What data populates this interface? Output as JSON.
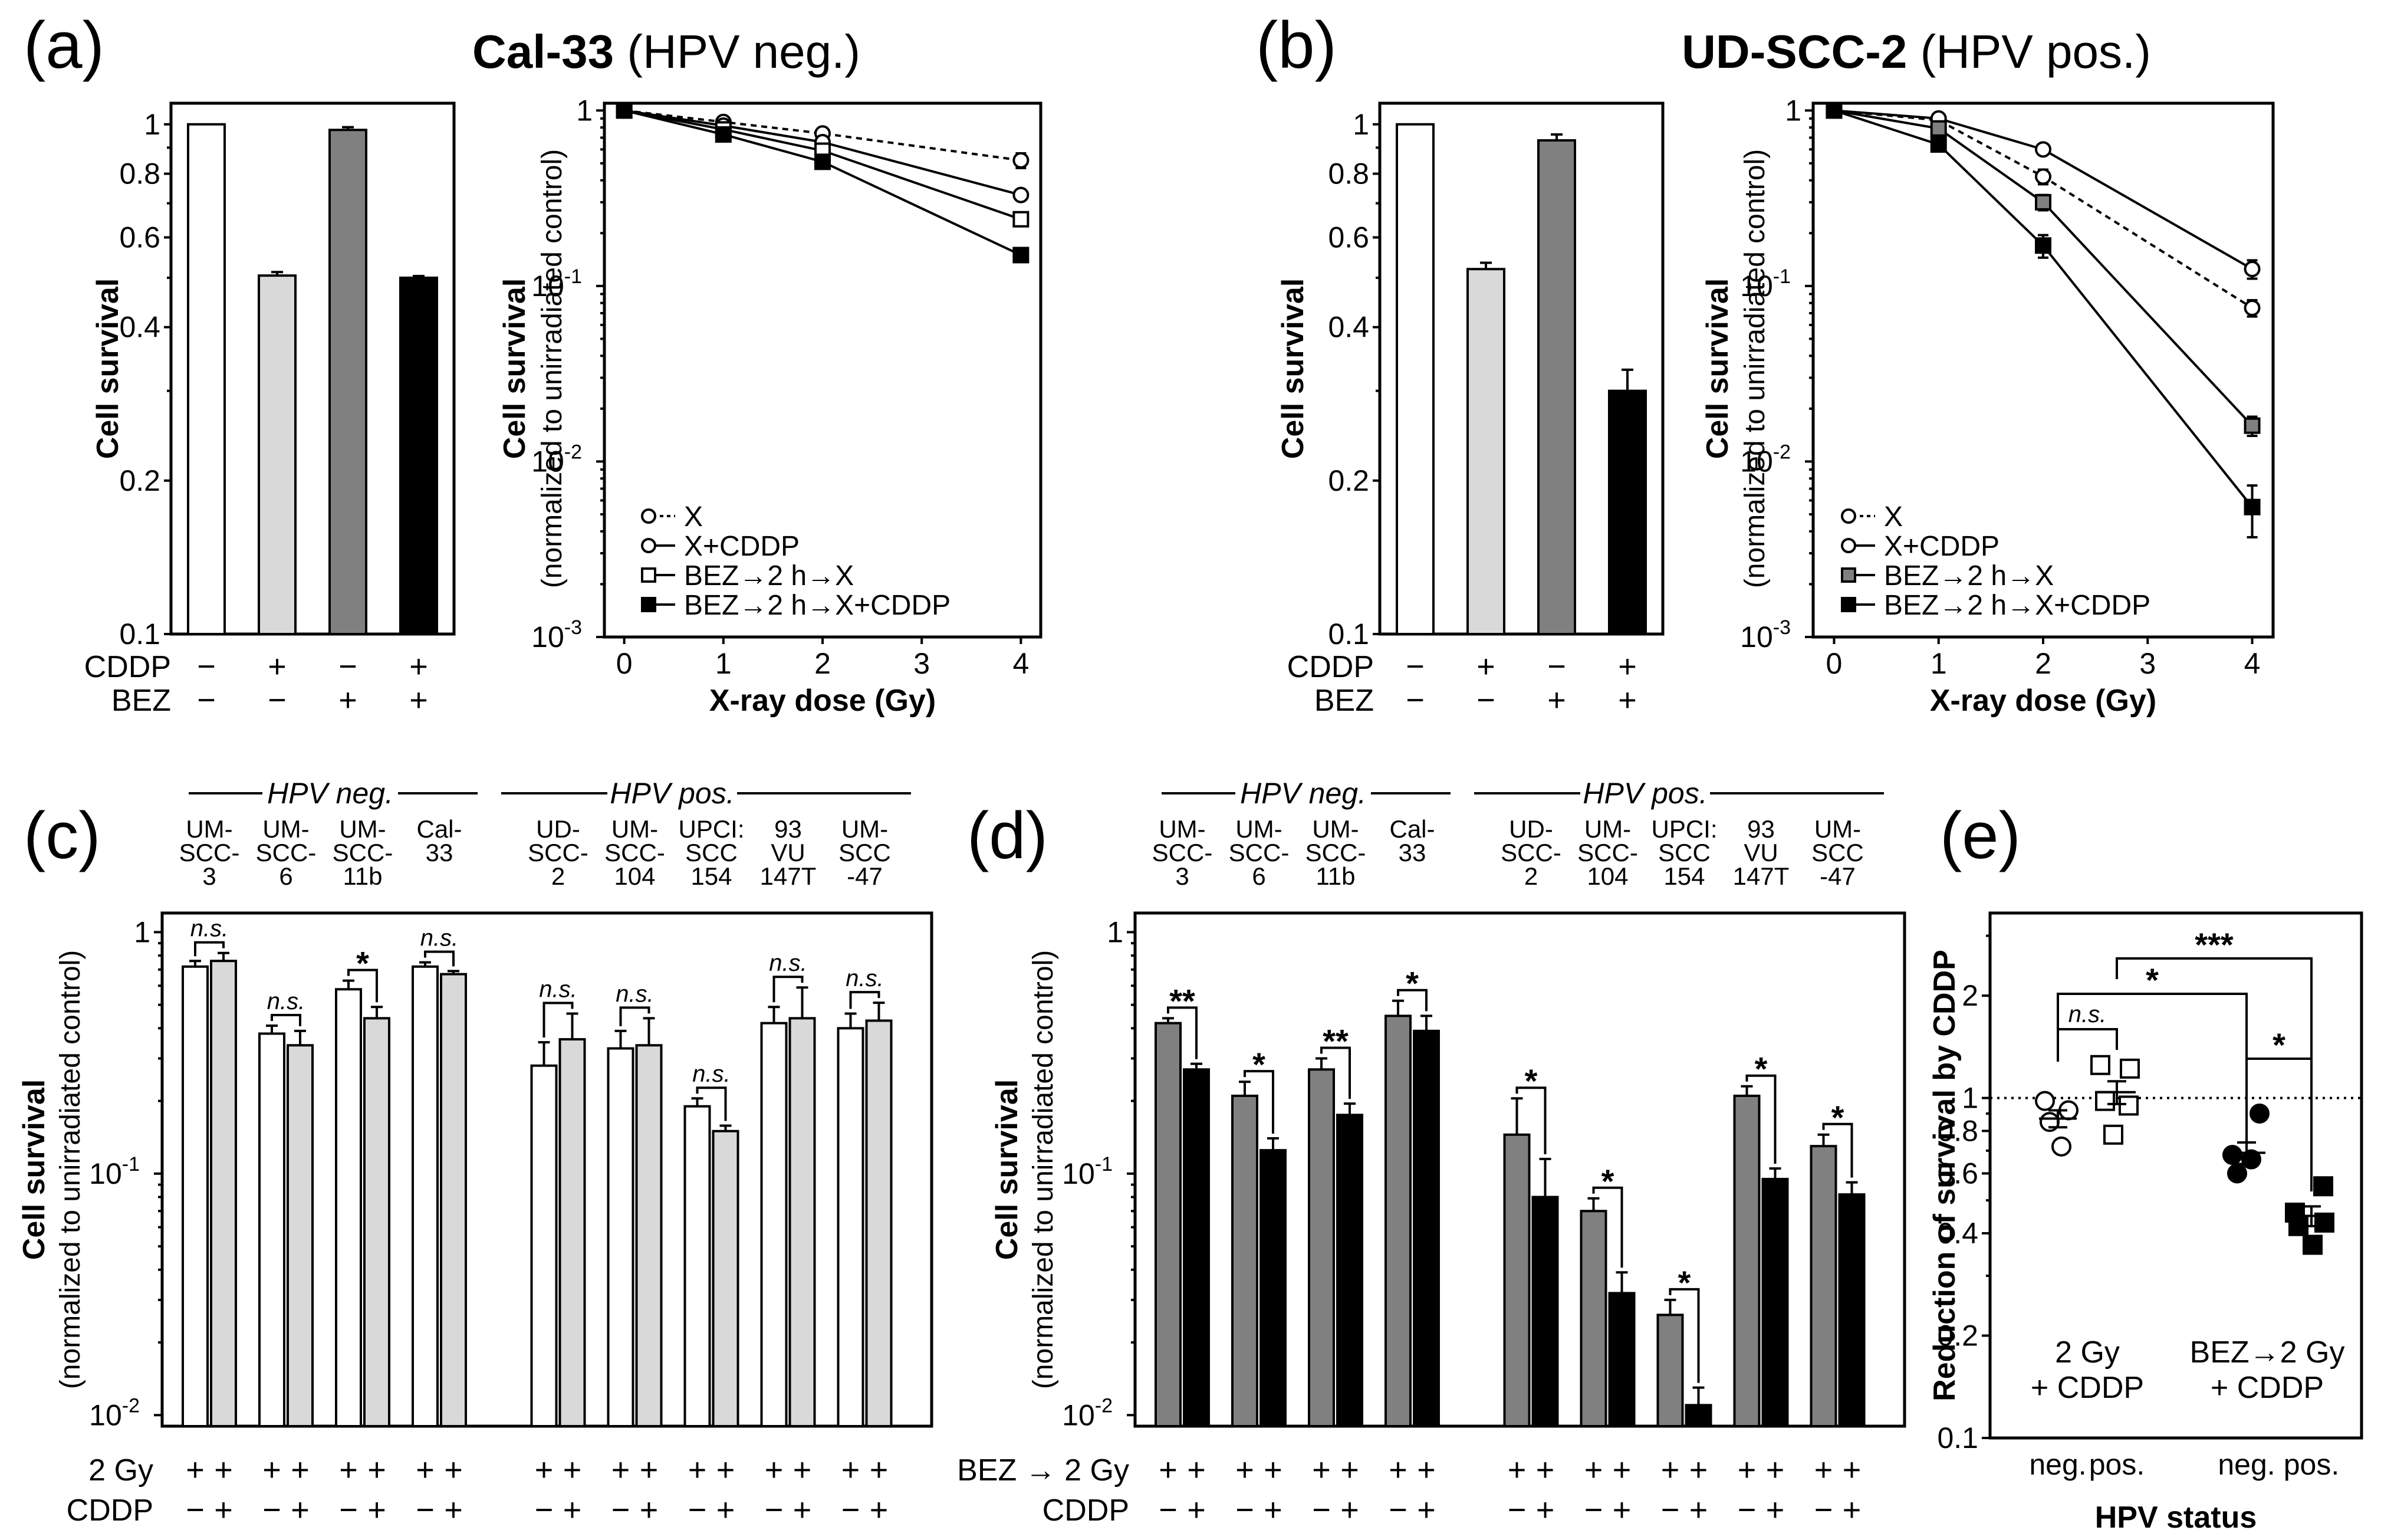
{
  "panels": {
    "a": {
      "label": "(a)",
      "title_bold": "Cal-33",
      "title_rest": " (HPV neg.)"
    },
    "b": {
      "label": "(b)",
      "title_bold": "UD-SCC-2",
      "title_rest": " (HPV pos.)"
    },
    "c": {
      "label": "(c)"
    },
    "d": {
      "label": "(d)"
    },
    "e": {
      "label": "(e)"
    }
  },
  "labels": {
    "cell_survival": "Cell survival",
    "normalized": "(normalized to unirradiated control)",
    "xray_dose": "X-ray dose (Gy)",
    "cddp": "CDDP",
    "bez": "BEZ",
    "two_gy": "2 Gy",
    "bez_2gy": "BEZ → 2 Gy",
    "hpv_neg": "HPV neg.",
    "hpv_pos": "HPV pos.",
    "reduction": "Reduction of survival by CDDP",
    "hpv_status": "HPV status",
    "plus": "+",
    "minus": "−",
    "ns": "n.s.",
    "e_group1_line1": "2 Gy",
    "e_group1_line2": "+ CDDP",
    "e_group2_line1": "BEZ→2 Gy",
    "e_group2_line2": "+ CDDP",
    "e_neg": "neg.",
    "e_pos": "pos."
  },
  "legend": [
    "X",
    "X+CDDP",
    "BEZ→2 h→X",
    "BEZ→2 h→X+CDDP"
  ],
  "cell_lines": [
    "UM-SCC-3",
    "UM-SCC-6",
    "UM-SCC-11b",
    "Cal-33",
    "UD-SCC-2",
    "UM-SCC-104",
    "UPCI:SCC154",
    "93VU147T",
    "UM-SCC-47"
  ],
  "cell_line_lines": [
    [
      "UM-",
      "SCC-",
      "3"
    ],
    [
      "UM-",
      "SCC-",
      "6"
    ],
    [
      "UM-",
      "SCC-",
      "11b"
    ],
    [
      "Cal-",
      "33"
    ],
    [
      "UD-",
      "SCC-",
      "2"
    ],
    [
      "UM-",
      "SCC-",
      "104"
    ],
    [
      "UPCI:",
      "SCC",
      "154"
    ],
    [
      "93",
      "VU",
      "147T"
    ],
    [
      "UM-",
      "SCC",
      "-47"
    ]
  ],
  "colors": {
    "white": "#ffffff",
    "light_gray": "#d9d9d9",
    "dark_gray": "#808080",
    "black": "#000000"
  },
  "chart_data": [
    {
      "id": "a-left",
      "type": "bar",
      "scale": "log",
      "ylim": [
        0.1,
        1.1
      ],
      "ylabel": "Cell survival",
      "yticks": [
        0.1,
        0.2,
        0.4,
        0.6,
        0.8,
        1
      ],
      "categories": [
        "CDDP −/BEZ −",
        "CDDP +/BEZ −",
        "CDDP −/BEZ +",
        "CDDP +/BEZ +"
      ],
      "cddp": [
        "−",
        "+",
        "−",
        "+"
      ],
      "bez": [
        "−",
        "−",
        "+",
        "+"
      ],
      "values": [
        1.0,
        0.505,
        0.975,
        0.5
      ],
      "errors": [
        0,
        0.008,
        0.012,
        0.004
      ]
    },
    {
      "id": "a-right",
      "type": "line",
      "scale": "log",
      "title": "Cal-33 (HPV neg.)",
      "xlabel": "X-ray dose (Gy)",
      "ylabel": "Cell survival (normalized to unirradiated control)",
      "x": [
        0,
        1,
        2,
        4
      ],
      "xlim": [
        -0.2,
        4.2
      ],
      "ylim": [
        0.001,
        1.1
      ],
      "series": [
        {
          "name": "X",
          "values": [
            1,
            0.86,
            0.74,
            0.52
          ],
          "errors": [
            0,
            0.03,
            0.03,
            0.05
          ]
        },
        {
          "name": "X+CDDP",
          "values": [
            1,
            0.82,
            0.66,
            0.33
          ],
          "errors": [
            0,
            0.02,
            0.02,
            0.02
          ]
        },
        {
          "name": "BEZ→2 h→X",
          "values": [
            1,
            0.78,
            0.59,
            0.24
          ],
          "errors": [
            0,
            0.02,
            0.02,
            0.015
          ]
        },
        {
          "name": "BEZ→2 h→X+CDDP",
          "values": [
            1,
            0.73,
            0.51,
            0.15
          ],
          "errors": [
            0,
            0.02,
            0.03,
            0.01
          ]
        }
      ]
    },
    {
      "id": "b-left",
      "type": "bar",
      "scale": "log",
      "ylim": [
        0.1,
        1.1
      ],
      "ylabel": "Cell survival",
      "yticks": [
        0.1,
        0.2,
        0.4,
        0.6,
        0.8,
        1
      ],
      "categories": [
        "CDDP −/BEZ −",
        "CDDP +/BEZ −",
        "CDDP −/BEZ +",
        "CDDP +/BEZ +"
      ],
      "cddp": [
        "−",
        "+",
        "−",
        "+"
      ],
      "bez": [
        "−",
        "−",
        "+",
        "+"
      ],
      "values": [
        1.0,
        0.52,
        0.93,
        0.3
      ],
      "errors": [
        0,
        0.015,
        0.025,
        0.03
      ]
    },
    {
      "id": "b-right",
      "type": "line",
      "scale": "log",
      "title": "UD-SCC-2 (HPV pos.)",
      "xlabel": "X-ray dose (Gy)",
      "ylabel": "Cell survival (normalized to unirradiated control)",
      "x": [
        0,
        1,
        2,
        4
      ],
      "xlim": [
        -0.2,
        4.2
      ],
      "ylim": [
        0.001,
        1.1
      ],
      "series": [
        {
          "name": "X",
          "values": [
            1,
            0.88,
            0.42,
            0.075
          ],
          "errors": [
            0,
            0.03,
            0.04,
            0.008
          ]
        },
        {
          "name": "X+CDDP",
          "values": [
            1,
            0.9,
            0.6,
            0.125
          ],
          "errors": [
            0,
            0.03,
            0.04,
            0.015
          ]
        },
        {
          "name": "BEZ→2 h→X",
          "values": [
            1,
            0.79,
            0.3,
            0.016
          ],
          "errors": [
            0,
            0.03,
            0.03,
            0.002
          ]
        },
        {
          "name": "BEZ→2 h→X+CDDP",
          "values": [
            1,
            0.64,
            0.17,
            0.0055
          ],
          "errors": [
            0,
            0.03,
            0.025,
            0.0018
          ]
        }
      ]
    },
    {
      "id": "c",
      "type": "bar",
      "scale": "log",
      "ylim": [
        0.009,
        1.2
      ],
      "ylabel": "Cell survival (normalized to unirradiated control)",
      "row1": "2 Gy",
      "row2": "CDDP",
      "categories": [
        "UM-SCC-3",
        "UM-SCC-6",
        "UM-SCC-11b",
        "Cal-33",
        "UD-SCC-2",
        "UM-SCC-104",
        "UPCI:SCC154",
        "93VU147T",
        "UM-SCC-47"
      ],
      "series": [
        {
          "name": "2 Gy",
          "values": [
            0.72,
            0.38,
            0.58,
            0.72,
            0.28,
            0.33,
            0.19,
            0.42,
            0.4
          ],
          "errors": [
            0.04,
            0.03,
            0.05,
            0.03,
            0.07,
            0.06,
            0.015,
            0.07,
            0.06
          ]
        },
        {
          "name": "2 Gy + CDDP",
          "values": [
            0.76,
            0.34,
            0.44,
            0.67,
            0.36,
            0.34,
            0.15,
            0.44,
            0.43
          ],
          "errors": [
            0.06,
            0.05,
            0.05,
            0.02,
            0.1,
            0.1,
            0.008,
            0.15,
            0.08
          ]
        }
      ],
      "significance": [
        "n.s.",
        "n.s.",
        "*",
        "n.s.",
        "n.s.",
        "n.s.",
        "n.s.",
        "n.s.",
        "n.s."
      ]
    },
    {
      "id": "d",
      "type": "bar",
      "scale": "log",
      "ylim": [
        0.009,
        1.2
      ],
      "ylabel": "Cell survival (normalized to unirradiated control)",
      "row1": "BEZ → 2 Gy",
      "row2": "CDDP",
      "categories": [
        "UM-SCC-3",
        "UM-SCC-6",
        "UM-SCC-11b",
        "Cal-33",
        "UD-SCC-2",
        "UM-SCC-104",
        "UPCI:SCC154",
        "93VU147T",
        "UM-SCC-47"
      ],
      "series": [
        {
          "name": "BEZ → 2 Gy",
          "values": [
            0.42,
            0.21,
            0.27,
            0.45,
            0.145,
            0.07,
            0.026,
            0.21,
            0.13
          ],
          "errors": [
            0.02,
            0.03,
            0.03,
            0.07,
            0.06,
            0.009,
            0.004,
            0.02,
            0.015
          ]
        },
        {
          "name": "BEZ → 2 Gy + CDDP",
          "values": [
            0.27,
            0.125,
            0.175,
            0.39,
            0.08,
            0.032,
            0.011,
            0.095,
            0.082
          ],
          "errors": [
            0.015,
            0.015,
            0.02,
            0.06,
            0.035,
            0.007,
            0.002,
            0.01,
            0.01
          ]
        }
      ],
      "significance": [
        "**",
        "*",
        "**",
        "*",
        "*",
        "*",
        "*",
        "*",
        "*"
      ]
    },
    {
      "id": "e",
      "type": "scatter",
      "scale": "log",
      "ylim": [
        0.1,
        3.5
      ],
      "ylabel": "Reduction of survival by CDDP",
      "xlabel": "HPV status",
      "reference_line": 1,
      "groups": [
        {
          "name": "2 Gy + CDDP, neg.",
          "marker": "open-circle",
          "values": [
            0.98,
            0.92,
            0.85,
            0.72
          ],
          "mean": 0.87,
          "sem": 0.05
        },
        {
          "name": "2 Gy + CDDP, pos.",
          "marker": "open-square",
          "values": [
            1.25,
            1.22,
            0.98,
            0.95,
            0.78
          ],
          "mean": 1.04,
          "sem": 0.08
        },
        {
          "name": "BEZ→2 Gy + CDDP, neg.",
          "marker": "filled-circle",
          "values": [
            0.9,
            0.68,
            0.66,
            0.6
          ],
          "mean": 0.69,
          "sem": 0.05
        },
        {
          "name": "BEZ→2 Gy + CDDP, pos.",
          "marker": "filled-square",
          "values": [
            0.55,
            0.46,
            0.43,
            0.42,
            0.37
          ],
          "mean": 0.45,
          "sem": 0.03
        }
      ],
      "significance": [
        {
          "between": [
            "2 Gy neg.",
            "2 Gy pos."
          ],
          "label": "n.s."
        },
        {
          "between": [
            "2 Gy neg.",
            "BEZ neg."
          ],
          "label": "*"
        },
        {
          "between": [
            "2 Gy pos.",
            "BEZ pos."
          ],
          "label": "***"
        },
        {
          "between": [
            "BEZ neg.",
            "BEZ pos."
          ],
          "label": "*"
        }
      ]
    }
  ]
}
